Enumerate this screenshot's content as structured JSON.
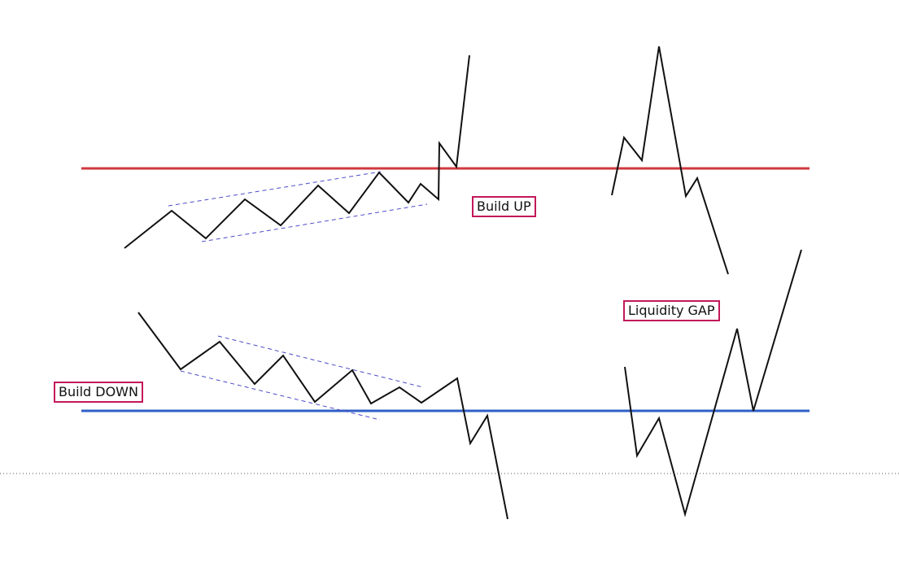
{
  "labels": {
    "build_up": "Build UP",
    "liquidity_gap": "Liquidity GAP",
    "build_down": "Build DOWN"
  },
  "colors": {
    "resistance_line": "#d0383f",
    "support_line": "#2f5fc7",
    "price_line": "#111111",
    "channel_line": "#4b4bc8",
    "label_border": "#c2185b",
    "separator": "#555555"
  }
}
